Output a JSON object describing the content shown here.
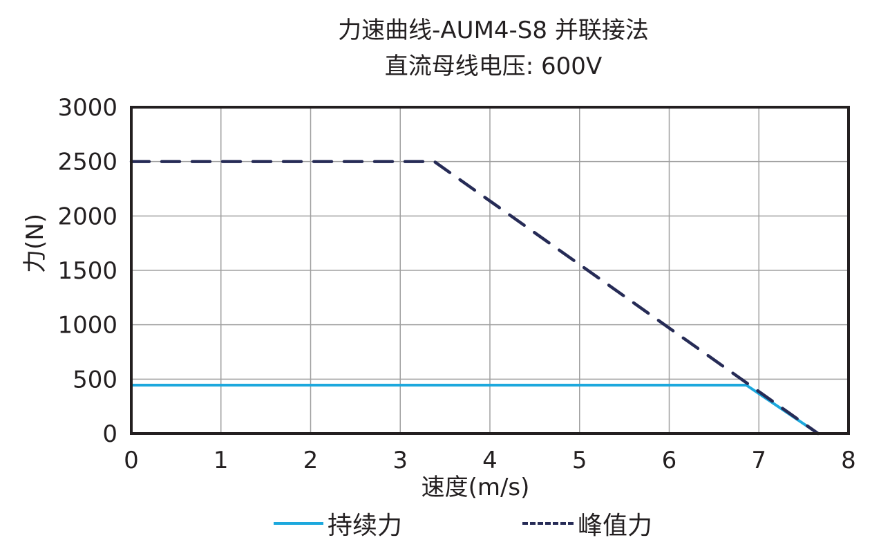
{
  "title": "力速曲线-AUM4-S8 并联接法",
  "subtitle": "直流母线电压: 600V",
  "colors": {
    "continuous": "#1ca8dd",
    "peak": "#262b56",
    "axis": "#231f20",
    "grid": "#a0a0a0"
  },
  "legend": {
    "continuous_label": "持续力",
    "peak_label": "峰值力"
  },
  "chart_data": {
    "type": "line",
    "title": "力速曲线-AUM4-S8 并联接法",
    "subtitle": "直流母线电压: 600V",
    "xlabel": "速度(m/s)",
    "ylabel": "力(N)",
    "xlim": [
      0,
      8
    ],
    "ylim": [
      0,
      3000
    ],
    "xticks": [
      "0",
      "1",
      "2",
      "3",
      "4",
      "5",
      "6",
      "7",
      "8"
    ],
    "yticks": [
      "0",
      "500",
      "1000",
      "1500",
      "2000",
      "2500",
      "3000"
    ],
    "grid": true,
    "legend_position": "bottom",
    "series": [
      {
        "name": "持续力",
        "style": "solid",
        "color": "#1ca8dd",
        "points": [
          [
            0,
            445
          ],
          [
            6.86,
            445
          ],
          [
            7.66,
            0
          ]
        ]
      },
      {
        "name": "峰值力",
        "style": "dashed",
        "color": "#262b56",
        "points": [
          [
            0,
            2500
          ],
          [
            3.38,
            2500
          ],
          [
            7.66,
            0
          ]
        ]
      }
    ]
  }
}
